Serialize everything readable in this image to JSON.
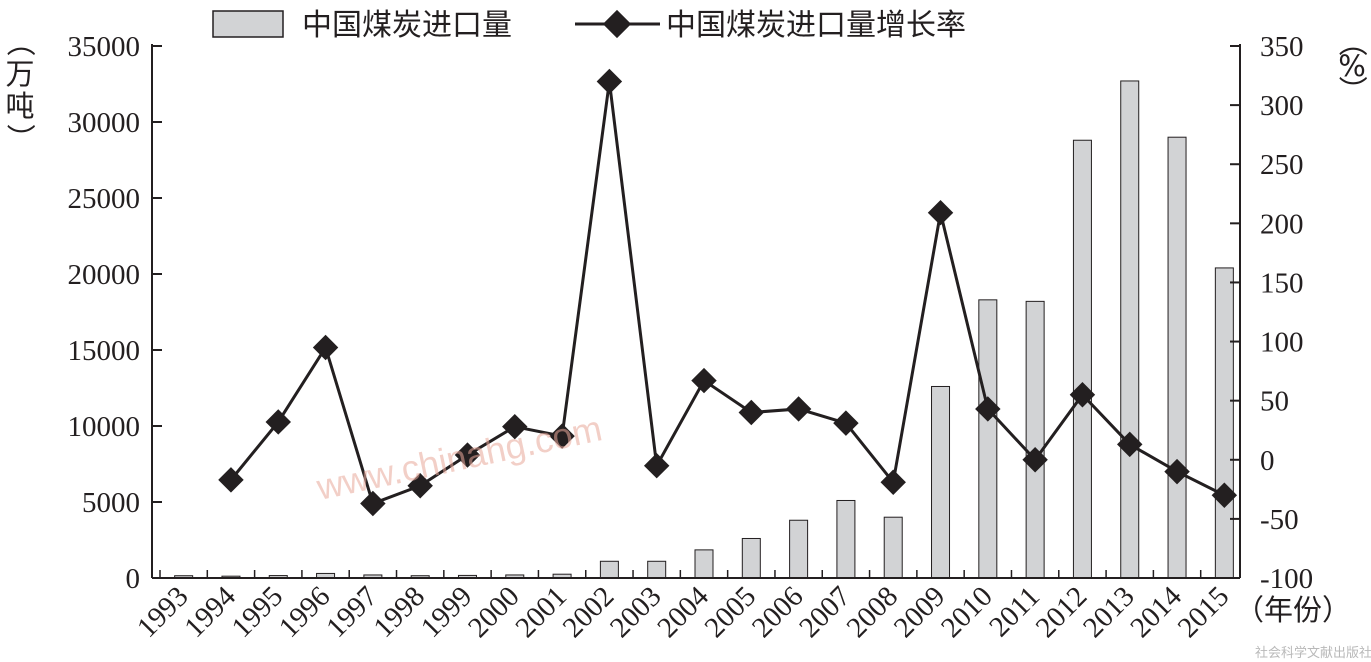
{
  "chart_data": {
    "type": "bar+line",
    "categories": [
      "1993",
      "1994",
      "1995",
      "1996",
      "1997",
      "1998",
      "1999",
      "2000",
      "2001",
      "2002",
      "2003",
      "2004",
      "2005",
      "2006",
      "2007",
      "2008",
      "2009",
      "2010",
      "2011",
      "2012",
      "2013",
      "2014",
      "2015"
    ],
    "series": [
      {
        "name": "中国煤炭进口量",
        "type": "bar",
        "axis": "left",
        "values": [
          150,
          120,
          160,
          300,
          200,
          150,
          170,
          200,
          250,
          1100,
          1100,
          1850,
          2600,
          3800,
          5100,
          4000,
          12600,
          18300,
          18200,
          28800,
          32700,
          29000,
          20400
        ]
      },
      {
        "name": "中国煤炭进口量增长率",
        "type": "line",
        "axis": "right",
        "values": [
          null,
          -17,
          32,
          95,
          -37,
          -22,
          4,
          28,
          20,
          320,
          -5,
          67,
          40,
          43,
          31,
          -19,
          209,
          43,
          0,
          55,
          13,
          -10,
          -30
        ]
      }
    ],
    "left_axis": {
      "label": "（万吨）",
      "ylim": [
        0,
        35000
      ],
      "ticks": [
        "0",
        "5000",
        "10000",
        "15000",
        "20000",
        "25000",
        "30000",
        "35000"
      ]
    },
    "right_axis": {
      "label": "（%）",
      "ylim": [
        -100,
        350
      ],
      "ticks": [
        "-100",
        "-50",
        "0",
        "50",
        "100",
        "150",
        "200",
        "250",
        "300",
        "350"
      ]
    },
    "x_axis": {
      "label": "（年份）"
    },
    "legend_position": "top",
    "colors": {
      "bar_fill": "#d2d3d5",
      "bar_stroke": "#231f20",
      "line": "#231f20",
      "marker": "#231f20"
    }
  },
  "watermark": "www.chinahg.com",
  "footer_watermark": "社会科学文献出版社"
}
